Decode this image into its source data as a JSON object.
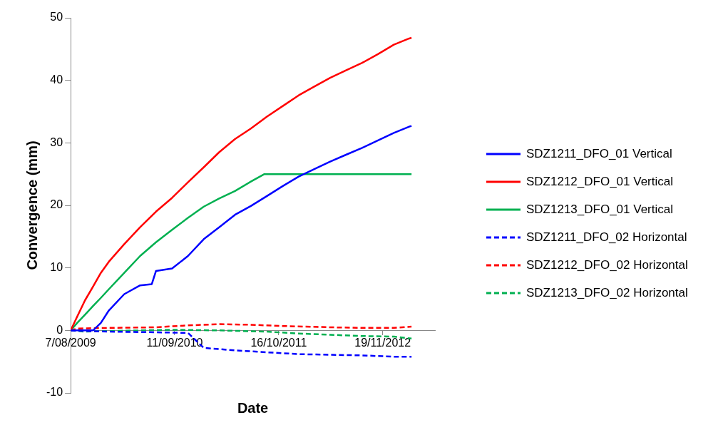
{
  "chart_data": {
    "type": "line",
    "xlabel": "Date",
    "ylabel": "Convergence (mm)",
    "legend": "right",
    "grid": false,
    "marker": "none",
    "xlim": [
      "2009-08-07",
      "2013-06-08"
    ],
    "xticks": [
      {
        "value": "2009-08-07",
        "label": "7/08/2009"
      },
      {
        "value": "2010-09-11",
        "label": "11/09/2010"
      },
      {
        "value": "2011-10-16",
        "label": "16/10/2011"
      },
      {
        "value": "2012-11-19",
        "label": "19/11/2012"
      }
    ],
    "ylim": [
      -10,
      50
    ],
    "yticks": [
      -10,
      0,
      10,
      20,
      30,
      40,
      50
    ],
    "series": [
      {
        "name": "SDZ1211_DFO_01 Vertical",
        "color": "#0000ff",
        "line_style": "solid",
        "x": [
          "2009-08-07",
          "2009-09-01",
          "2009-10-01",
          "2009-11-01",
          "2009-12-01",
          "2010-01-01",
          "2010-03-01",
          "2010-05-01",
          "2010-06-15",
          "2010-07-01",
          "2010-09-01",
          "2010-11-01",
          "2011-01-01",
          "2011-03-01",
          "2011-05-01",
          "2011-07-01",
          "2011-09-01",
          "2011-11-01",
          "2012-01-01",
          "2012-03-01",
          "2012-05-01",
          "2012-07-01",
          "2012-09-01",
          "2012-11-01",
          "2013-01-01",
          "2013-03-01",
          "2013-03-10"
        ],
        "values": [
          0,
          0,
          0,
          0,
          1.2,
          3.2,
          5.8,
          7.2,
          7.4,
          9.5,
          9.9,
          11.9,
          14.6,
          16.5,
          18.5,
          19.9,
          21.5,
          23.1,
          24.6,
          25.8,
          27.0,
          28.1,
          29.2,
          30.4,
          31.6,
          32.6,
          32.7
        ]
      },
      {
        "name": "SDZ1212_DFO_01 Vertical",
        "color": "#ff0000",
        "line_style": "solid",
        "x": [
          "2009-08-07",
          "2009-09-01",
          "2009-10-01",
          "2009-11-01",
          "2009-12-01",
          "2010-01-01",
          "2010-03-01",
          "2010-05-01",
          "2010-07-01",
          "2010-09-01",
          "2010-11-01",
          "2011-01-01",
          "2011-03-01",
          "2011-05-01",
          "2011-07-01",
          "2011-09-01",
          "2011-11-01",
          "2012-01-01",
          "2012-03-01",
          "2012-05-01",
          "2012-07-01",
          "2012-09-01",
          "2012-11-01",
          "2013-01-01",
          "2013-03-01",
          "2013-03-10"
        ],
        "values": [
          0,
          2.2,
          4.8,
          7.0,
          9.2,
          11.0,
          13.8,
          16.5,
          19.0,
          21.2,
          23.7,
          26.1,
          28.5,
          30.6,
          32.3,
          34.2,
          35.9,
          37.6,
          39.0,
          40.4,
          41.6,
          42.8,
          44.2,
          45.7,
          46.7,
          46.8
        ]
      },
      {
        "name": "SDZ1213_DFO_01 Vertical",
        "color": "#00b050",
        "line_style": "solid",
        "x": [
          "2009-08-07",
          "2009-09-01",
          "2009-10-01",
          "2009-11-01",
          "2009-12-01",
          "2010-01-01",
          "2010-03-01",
          "2010-05-01",
          "2010-07-01",
          "2010-09-01",
          "2010-11-01",
          "2011-01-01",
          "2011-03-01",
          "2011-05-01",
          "2011-07-01",
          "2011-08-22",
          "2012-01-01",
          "2012-07-01",
          "2013-01-01",
          "2013-03-10"
        ],
        "values": [
          0,
          1.2,
          2.5,
          3.9,
          5.2,
          6.6,
          9.2,
          11.9,
          14.1,
          16.1,
          18.0,
          19.8,
          21.1,
          22.3,
          23.8,
          25.0,
          25.0,
          25.0,
          25.0,
          25.0
        ]
      },
      {
        "name": "SDZ1211_DFO_02 Horizontal",
        "color": "#0000ff",
        "line_style": "dashed",
        "x": [
          "2009-08-07",
          "2009-10-01",
          "2010-01-01",
          "2010-07-01",
          "2010-11-01",
          "2011-01-01",
          "2011-05-01",
          "2011-09-01",
          "2012-01-01",
          "2012-05-01",
          "2012-09-01",
          "2013-01-01",
          "2013-03-10"
        ],
        "values": [
          0,
          -0.1,
          -0.2,
          -0.3,
          -0.4,
          -2.8,
          -3.2,
          -3.5,
          -3.8,
          -3.9,
          -4.0,
          -4.2,
          -4.2
        ]
      },
      {
        "name": "SDZ1212_DFO_02 Horizontal",
        "color": "#ff0000",
        "line_style": "dashed",
        "x": [
          "2009-08-07",
          "2009-09-01",
          "2010-01-01",
          "2010-07-01",
          "2010-11-01",
          "2011-03-01",
          "2011-07-01",
          "2011-11-01",
          "2012-05-01",
          "2012-09-01",
          "2013-01-01",
          "2013-03-10"
        ],
        "values": [
          0,
          0.3,
          0.4,
          0.5,
          0.8,
          1.0,
          0.9,
          0.7,
          0.5,
          0.4,
          0.4,
          0.6
        ]
      },
      {
        "name": "SDZ1213_DFO_02 Horizontal",
        "color": "#00b050",
        "line_style": "dashed",
        "x": [
          "2009-08-07",
          "2009-10-01",
          "2010-01-01",
          "2010-09-01",
          "2011-03-01",
          "2011-09-01",
          "2012-01-01",
          "2012-05-01",
          "2012-09-01",
          "2013-01-01",
          "2013-03-10"
        ],
        "values": [
          0,
          -0.2,
          -0.1,
          0.1,
          0.0,
          -0.2,
          -0.5,
          -0.7,
          -0.9,
          -1.0,
          -1.3
        ]
      }
    ]
  }
}
